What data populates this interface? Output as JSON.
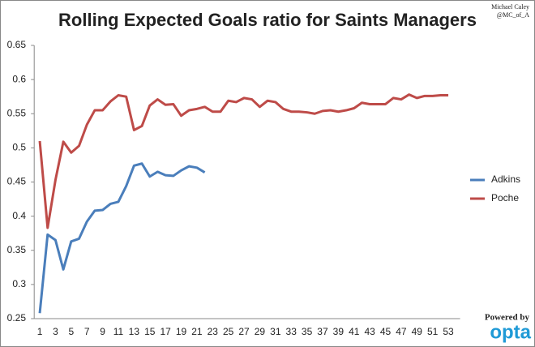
{
  "chart_data": {
    "type": "line",
    "title": "Rolling Expected Goals ratio for Saints Managers",
    "credit": [
      "Michael Caley",
      "@MC_of_A"
    ],
    "branding": {
      "text": "Powered by",
      "logo": "opta"
    },
    "categories": [
      1,
      null,
      3,
      null,
      5,
      null,
      7,
      null,
      9,
      null,
      11,
      null,
      13,
      null,
      15,
      null,
      17,
      null,
      19,
      null,
      21,
      null,
      23,
      null,
      25,
      null,
      27,
      null,
      29,
      null,
      31,
      null,
      33,
      null,
      35,
      null,
      37,
      null,
      39,
      null,
      41,
      null,
      43,
      null,
      45,
      null,
      47,
      null,
      49,
      null,
      51,
      null,
      53,
      null
    ],
    "series": [
      {
        "name": "Adkins",
        "color": "#4a7ebb",
        "values": [
          0.258,
          0.373,
          0.365,
          0.322,
          0.363,
          0.367,
          0.392,
          0.408,
          0.409,
          0.418,
          0.421,
          0.444,
          0.474,
          0.477,
          0.458,
          0.465,
          0.46,
          0.459,
          0.467,
          0.473,
          0.471,
          0.464,
          null,
          null,
          null,
          null,
          null,
          null,
          null,
          null,
          null,
          null,
          null,
          null,
          null,
          null,
          null,
          null,
          null,
          null,
          null,
          null,
          null,
          null,
          null,
          null,
          null,
          null,
          null,
          null,
          null,
          null,
          null,
          null
        ]
      },
      {
        "name": "Poche",
        "color": "#be4b48",
        "values": [
          0.51,
          0.383,
          0.453,
          0.509,
          0.493,
          0.503,
          0.534,
          0.555,
          0.555,
          0.568,
          0.577,
          0.575,
          0.526,
          0.532,
          0.562,
          0.571,
          0.563,
          0.564,
          0.547,
          0.555,
          0.557,
          0.56,
          0.553,
          0.553,
          0.569,
          0.567,
          0.573,
          0.571,
          0.56,
          0.569,
          0.567,
          0.557,
          0.553,
          0.553,
          0.552,
          0.55,
          0.554,
          0.555,
          0.553,
          0.555,
          0.558,
          0.566,
          0.564,
          0.564,
          0.564,
          0.573,
          0.571,
          0.578,
          0.573,
          0.576,
          0.576,
          0.577,
          0.577,
          null
        ]
      }
    ],
    "ylim": [
      0.25,
      0.65
    ],
    "yticks": [
      0.25,
      0.3,
      0.35,
      0.4,
      0.45,
      0.5,
      0.55,
      0.6,
      0.65
    ],
    "grid": false,
    "legend": "right"
  }
}
